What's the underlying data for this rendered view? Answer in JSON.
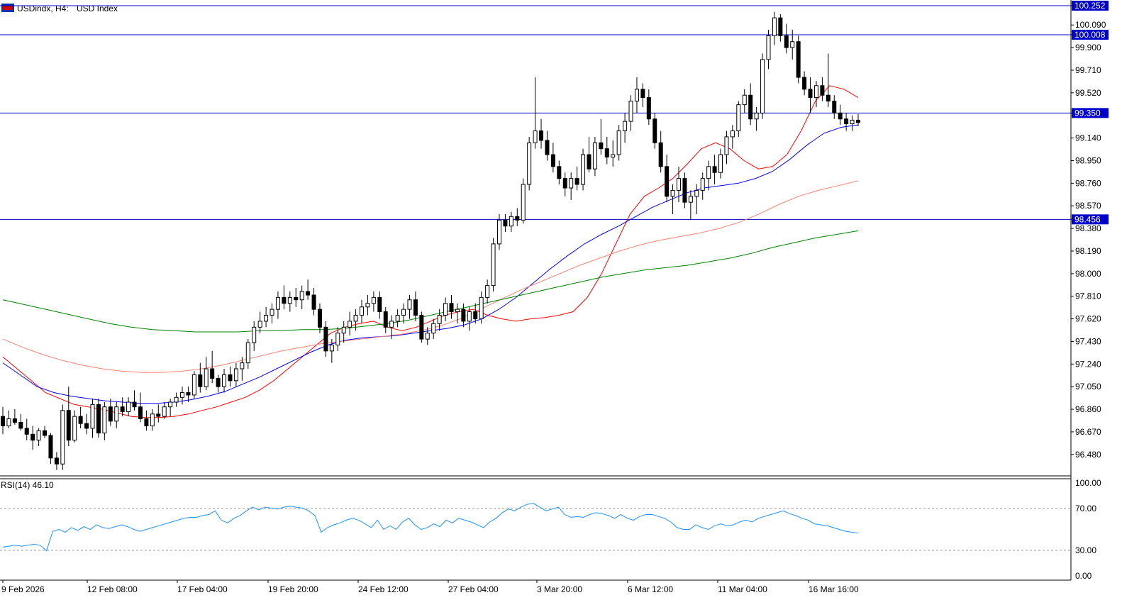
{
  "header": {
    "symbol": "USDindx, H4:",
    "description": "USD Index",
    "flag_icon": "us-flag-icon"
  },
  "colors": {
    "up_body": "#ffffff",
    "down_body": "#000000",
    "wick": "#000000",
    "hline": "#0000cc",
    "hline_label_bg": "#0000cc",
    "ma_fast": "#ff0000",
    "ma_mid": "#0000ff",
    "ma_slow": "#ff8070",
    "ma_long": "#008000",
    "rsi_line": "#1e90ff",
    "grid_axis": "#000000",
    "rsi_level": "#808080"
  },
  "price_axis": {
    "labels": [
      "100.252",
      "100.090",
      "100.008",
      "99.900",
      "99.710",
      "99.520",
      "99.350",
      "99.140",
      "98.950",
      "98.760",
      "98.570",
      "98.456",
      "98.380",
      "98.190",
      "98.000",
      "97.810",
      "97.620",
      "97.430",
      "97.240",
      "97.050",
      "96.860",
      "96.670",
      "96.480"
    ]
  },
  "horizontal_lines": [
    {
      "value": 100.252,
      "label": "100.252"
    },
    {
      "value": 100.008,
      "label": "100.008"
    },
    {
      "value": 99.35,
      "label": "99.350"
    },
    {
      "value": 98.456,
      "label": "98.456"
    }
  ],
  "time_axis": {
    "labels": [
      "9 Feb 2026",
      "12 Feb 08:00",
      "17 Feb 04:00",
      "19 Feb 20:00",
      "24 Feb 12:00",
      "27 Feb 04:00",
      "3 Mar 20:00",
      "6 Mar 12:00",
      "11 Mar 04:00",
      "16 Mar 16:00"
    ]
  },
  "rsi": {
    "title": "RSI(14) 46.10",
    "levels": [
      "100.00",
      "70.00",
      "30.00",
      "0.00"
    ]
  },
  "chart_data": {
    "type": "candlestick",
    "title": "USDindx, H4: USD Index",
    "price_range": [
      96.3,
      100.3
    ],
    "candles": [
      [
        96.8,
        96.88,
        96.65,
        96.72
      ],
      [
        96.72,
        96.85,
        96.7,
        96.78
      ],
      [
        96.78,
        96.86,
        96.73,
        96.75
      ],
      [
        96.75,
        96.82,
        96.68,
        96.7
      ],
      [
        96.7,
        96.78,
        96.6,
        96.65
      ],
      [
        96.65,
        96.72,
        96.52,
        96.6
      ],
      [
        96.6,
        96.7,
        96.55,
        96.68
      ],
      [
        96.68,
        96.72,
        96.62,
        96.64
      ],
      [
        96.64,
        96.66,
        96.4,
        96.45
      ],
      [
        96.45,
        96.5,
        96.35,
        96.4
      ],
      [
        96.4,
        96.9,
        96.35,
        96.85
      ],
      [
        96.85,
        97.05,
        96.55,
        96.6
      ],
      [
        96.6,
        96.85,
        96.58,
        96.8
      ],
      [
        96.8,
        96.88,
        96.7,
        96.74
      ],
      [
        96.74,
        96.82,
        96.65,
        96.7
      ],
      [
        96.7,
        96.95,
        96.62,
        96.9
      ],
      [
        96.9,
        96.95,
        96.62,
        96.66
      ],
      [
        96.66,
        96.92,
        96.6,
        96.88
      ],
      [
        96.88,
        96.95,
        96.72,
        96.76
      ],
      [
        96.76,
        96.92,
        96.7,
        96.88
      ],
      [
        96.88,
        96.96,
        96.8,
        96.84
      ],
      [
        96.84,
        96.96,
        96.8,
        96.92
      ],
      [
        96.92,
        97.02,
        96.85,
        96.88
      ],
      [
        96.88,
        97.0,
        96.75,
        96.78
      ],
      [
        96.78,
        96.85,
        96.68,
        96.72
      ],
      [
        96.72,
        96.86,
        96.68,
        96.82
      ],
      [
        96.82,
        96.9,
        96.75,
        96.8
      ],
      [
        96.8,
        96.92,
        96.78,
        96.88
      ],
      [
        96.88,
        96.95,
        96.8,
        96.92
      ],
      [
        96.92,
        97.0,
        96.88,
        96.96
      ],
      [
        96.96,
        97.05,
        96.9,
        97.0
      ],
      [
        97.0,
        97.05,
        96.92,
        96.98
      ],
      [
        96.98,
        97.18,
        96.95,
        97.15
      ],
      [
        97.15,
        97.25,
        97.0,
        97.05
      ],
      [
        97.05,
        97.3,
        97.02,
        97.2
      ],
      [
        97.2,
        97.35,
        97.08,
        97.12
      ],
      [
        97.12,
        97.15,
        97.0,
        97.05
      ],
      [
        97.05,
        97.2,
        97.0,
        97.15
      ],
      [
        97.15,
        97.22,
        97.05,
        97.1
      ],
      [
        97.1,
        97.25,
        97.05,
        97.2
      ],
      [
        97.2,
        97.3,
        97.1,
        97.25
      ],
      [
        97.25,
        97.45,
        97.2,
        97.42
      ],
      [
        97.42,
        97.6,
        97.35,
        97.55
      ],
      [
        97.55,
        97.68,
        97.5,
        97.6
      ],
      [
        97.6,
        97.72,
        97.55,
        97.65
      ],
      [
        97.65,
        97.75,
        97.58,
        97.7
      ],
      [
        97.7,
        97.85,
        97.62,
        97.8
      ],
      [
        97.8,
        97.9,
        97.7,
        97.75
      ],
      [
        97.75,
        97.85,
        97.68,
        97.8
      ],
      [
        97.8,
        97.88,
        97.72,
        97.78
      ],
      [
        97.78,
        97.9,
        97.7,
        97.85
      ],
      [
        97.85,
        97.95,
        97.78,
        97.82
      ],
      [
        97.82,
        97.88,
        97.65,
        97.7
      ],
      [
        97.7,
        97.75,
        97.5,
        97.55
      ],
      [
        97.55,
        97.6,
        97.3,
        97.35
      ],
      [
        97.35,
        97.45,
        97.25,
        97.4
      ],
      [
        97.4,
        97.55,
        97.35,
        97.5
      ],
      [
        97.5,
        97.6,
        97.42,
        97.55
      ],
      [
        97.55,
        97.68,
        97.48,
        97.6
      ],
      [
        97.6,
        97.7,
        97.52,
        97.65
      ],
      [
        97.65,
        97.78,
        97.58,
        97.72
      ],
      [
        97.72,
        97.82,
        97.65,
        97.75
      ],
      [
        97.75,
        97.85,
        97.68,
        97.8
      ],
      [
        97.8,
        97.85,
        97.62,
        97.68
      ],
      [
        97.68,
        97.72,
        97.5,
        97.55
      ],
      [
        97.55,
        97.65,
        97.45,
        97.6
      ],
      [
        97.6,
        97.7,
        97.55,
        97.65
      ],
      [
        97.65,
        97.75,
        97.58,
        97.7
      ],
      [
        97.7,
        97.82,
        97.62,
        97.78
      ],
      [
        97.78,
        97.85,
        97.6,
        97.65
      ],
      [
        97.65,
        97.68,
        97.42,
        97.45
      ],
      [
        97.45,
        97.55,
        97.4,
        97.5
      ],
      [
        97.5,
        97.62,
        97.45,
        97.58
      ],
      [
        97.58,
        97.7,
        97.52,
        97.65
      ],
      [
        97.65,
        97.8,
        97.6,
        97.75
      ],
      [
        97.75,
        97.82,
        97.62,
        97.68
      ],
      [
        97.68,
        97.75,
        97.58,
        97.7
      ],
      [
        97.7,
        97.75,
        97.55,
        97.6
      ],
      [
        97.6,
        97.72,
        97.52,
        97.68
      ],
      [
        97.68,
        97.75,
        97.58,
        97.62
      ],
      [
        97.62,
        97.85,
        97.58,
        97.8
      ],
      [
        97.8,
        97.95,
        97.75,
        97.9
      ],
      [
        97.9,
        98.3,
        97.85,
        98.25
      ],
      [
        98.25,
        98.5,
        98.2,
        98.45
      ],
      [
        98.45,
        98.5,
        98.35,
        98.4
      ],
      [
        98.4,
        98.52,
        98.35,
        98.48
      ],
      [
        98.48,
        98.55,
        98.4,
        98.45
      ],
      [
        98.45,
        98.8,
        98.42,
        98.75
      ],
      [
        98.75,
        99.15,
        98.7,
        99.1
      ],
      [
        99.1,
        99.65,
        99.05,
        99.2
      ],
      [
        99.2,
        99.3,
        99.05,
        99.12
      ],
      [
        99.12,
        99.2,
        98.95,
        99.0
      ],
      [
        99.0,
        99.1,
        98.85,
        98.9
      ],
      [
        98.9,
        98.95,
        98.75,
        98.8
      ],
      [
        98.8,
        98.85,
        98.65,
        98.72
      ],
      [
        98.72,
        98.85,
        98.62,
        98.8
      ],
      [
        98.8,
        98.9,
        98.7,
        98.75
      ],
      [
        98.75,
        99.05,
        98.7,
        99.0
      ],
      [
        99.0,
        99.15,
        98.85,
        98.88
      ],
      [
        98.88,
        99.15,
        98.82,
        99.1
      ],
      [
        99.1,
        99.3,
        99.0,
        99.05
      ],
      [
        99.05,
        99.15,
        98.92,
        98.98
      ],
      [
        98.98,
        99.12,
        98.9,
        99.0
      ],
      [
        99.0,
        99.25,
        98.95,
        99.2
      ],
      [
        99.2,
        99.35,
        99.1,
        99.28
      ],
      [
        99.28,
        99.5,
        99.2,
        99.45
      ],
      [
        99.45,
        99.65,
        99.35,
        99.55
      ],
      [
        99.55,
        99.6,
        99.4,
        99.48
      ],
      [
        99.48,
        99.55,
        99.25,
        99.3
      ],
      [
        99.3,
        99.35,
        99.05,
        99.1
      ],
      [
        99.1,
        99.2,
        98.85,
        98.9
      ],
      [
        98.9,
        99.0,
        98.6,
        98.65
      ],
      [
        98.65,
        98.75,
        98.5,
        98.7
      ],
      [
        98.7,
        98.9,
        98.6,
        98.8
      ],
      [
        98.8,
        98.85,
        98.55,
        98.6
      ],
      [
        98.6,
        98.7,
        98.45,
        98.65
      ],
      [
        98.65,
        98.75,
        98.5,
        98.7
      ],
      [
        98.7,
        98.85,
        98.62,
        98.8
      ],
      [
        98.8,
        98.95,
        98.7,
        98.9
      ],
      [
        98.9,
        99.0,
        98.75,
        98.85
      ],
      [
        98.85,
        99.05,
        98.8,
        99.0
      ],
      [
        99.0,
        99.2,
        98.92,
        99.15
      ],
      [
        99.15,
        99.25,
        99.05,
        99.2
      ],
      [
        99.2,
        99.45,
        99.15,
        99.42
      ],
      [
        99.42,
        99.55,
        99.35,
        99.5
      ],
      [
        99.5,
        99.6,
        99.25,
        99.3
      ],
      [
        99.3,
        99.4,
        99.2,
        99.35
      ],
      [
        99.35,
        99.85,
        99.3,
        99.8
      ],
      [
        99.8,
        100.05,
        99.72,
        100.0
      ],
      [
        100.0,
        100.2,
        99.92,
        100.15
      ],
      [
        100.15,
        100.18,
        99.95,
        100.0
      ],
      [
        100.0,
        100.1,
        99.85,
        99.9
      ],
      [
        99.9,
        100.05,
        99.8,
        99.95
      ],
      [
        99.95,
        100.0,
        99.6,
        99.65
      ],
      [
        99.65,
        99.7,
        99.5,
        99.55
      ],
      [
        99.55,
        99.65,
        99.35,
        99.48
      ],
      [
        99.48,
        99.62,
        99.4,
        99.58
      ],
      [
        99.58,
        99.65,
        99.45,
        99.5
      ],
      [
        99.5,
        99.85,
        99.4,
        99.45
      ],
      [
        99.45,
        99.5,
        99.3,
        99.35
      ],
      [
        99.35,
        99.42,
        99.25,
        99.3
      ],
      [
        99.3,
        99.35,
        99.2,
        99.26
      ],
      [
        99.26,
        99.33,
        99.2,
        99.29
      ],
      [
        99.29,
        99.34,
        99.24,
        99.27
      ]
    ],
    "moving_averages": [
      {
        "name": "MA fast",
        "color": "#ff0000",
        "values": [
          97.3,
          97.2,
          97.1,
          97.0,
          96.95,
          96.9,
          96.88,
          96.86,
          96.83,
          96.8,
          96.79,
          96.79,
          96.8,
          96.82,
          96.85,
          96.88,
          96.92,
          96.96,
          97.02,
          97.1,
          97.2,
          97.3,
          97.4,
          97.5,
          97.55,
          97.58,
          97.6,
          97.55,
          97.52,
          97.55,
          97.6,
          97.65,
          97.68,
          97.7,
          97.65,
          97.62,
          97.6,
          97.62,
          97.63,
          97.65,
          97.68,
          97.8,
          98.0,
          98.25,
          98.5,
          98.65,
          98.72,
          98.8,
          98.92,
          99.05,
          99.1,
          99.05,
          98.95,
          98.88,
          98.9,
          99.0,
          99.2,
          99.45,
          99.58,
          99.55,
          99.48
        ]
      },
      {
        "name": "MA mid",
        "color": "#0000ff",
        "values": [
          97.25,
          97.15,
          97.05,
          97.0,
          96.97,
          96.95,
          96.93,
          96.92,
          96.91,
          96.91,
          96.92,
          96.94,
          96.97,
          97.01,
          97.07,
          97.13,
          97.2,
          97.27,
          97.34,
          97.4,
          97.44,
          97.46,
          97.47,
          97.48,
          97.5,
          97.52,
          97.54,
          97.57,
          97.62,
          97.7,
          97.8,
          97.92,
          98.04,
          98.15,
          98.25,
          98.33,
          98.4,
          98.48,
          98.56,
          98.62,
          98.68,
          98.72,
          98.74,
          98.76,
          98.8,
          98.86,
          98.96,
          99.08,
          99.18,
          99.23,
          99.25
        ]
      },
      {
        "name": "MA slow",
        "color": "#ff8070",
        "values": [
          97.45,
          97.38,
          97.32,
          97.27,
          97.23,
          97.2,
          97.18,
          97.17,
          97.17,
          97.18,
          97.2,
          97.23,
          97.27,
          97.31,
          97.35,
          97.38,
          97.41,
          97.43,
          97.45,
          97.47,
          97.49,
          97.52,
          97.56,
          97.62,
          97.7,
          97.78,
          97.86,
          97.93,
          98.0,
          98.07,
          98.13,
          98.19,
          98.24,
          98.28,
          98.31,
          98.34,
          98.38,
          98.43,
          98.5,
          98.58,
          98.65,
          98.7,
          98.74,
          98.78
        ]
      },
      {
        "name": "MA long",
        "color": "#008000",
        "values": [
          97.78,
          97.74,
          97.7,
          97.66,
          97.62,
          97.58,
          97.55,
          97.53,
          97.52,
          97.51,
          97.51,
          97.51,
          97.52,
          97.52,
          97.53,
          97.53,
          97.54,
          97.56,
          97.58,
          97.61,
          97.65,
          97.69,
          97.73,
          97.77,
          97.81,
          97.85,
          97.89,
          97.93,
          97.97,
          98.0,
          98.03,
          98.05,
          98.07,
          98.1,
          98.13,
          98.17,
          98.22,
          98.26,
          98.3,
          98.33,
          98.36
        ]
      }
    ],
    "rsi_values": [
      31,
      32,
      33,
      32,
      33,
      34,
      33,
      27,
      48,
      50,
      47,
      52,
      49,
      53,
      50,
      55,
      52,
      51,
      53,
      55,
      53,
      50,
      48,
      50,
      52,
      54,
      56,
      58,
      60,
      62,
      63,
      63,
      65,
      66,
      70,
      60,
      57,
      62,
      65,
      70,
      74,
      71,
      74,
      73,
      72,
      74,
      75,
      74,
      73,
      70,
      65,
      47,
      52,
      55,
      57,
      60,
      62,
      60,
      56,
      52,
      60,
      50,
      54,
      50,
      58,
      62,
      55,
      50,
      52,
      56,
      53,
      60,
      57,
      62,
      60,
      58,
      55,
      52,
      58,
      62,
      68,
      72,
      70,
      74,
      77,
      78,
      74,
      70,
      72,
      74,
      66,
      63,
      64,
      63,
      66,
      68,
      67,
      65,
      62,
      66,
      62,
      60,
      64,
      66,
      66,
      64,
      62,
      58,
      52,
      50,
      50,
      55,
      52,
      50,
      54,
      56,
      54,
      55,
      58,
      60,
      58,
      62,
      64,
      66,
      68,
      70,
      67,
      65,
      62,
      60,
      56,
      55,
      54,
      52,
      50,
      48,
      47,
      46
    ]
  }
}
